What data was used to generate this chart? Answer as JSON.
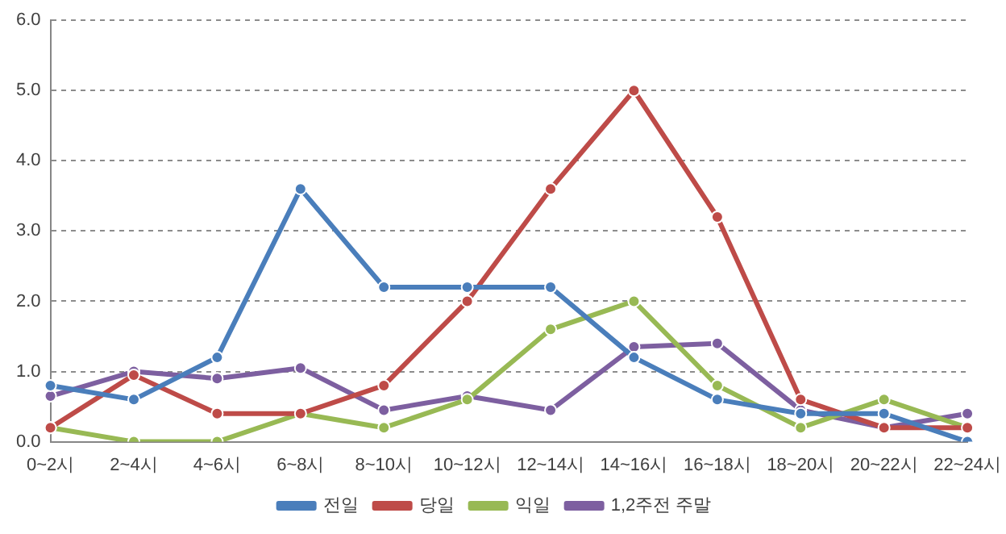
{
  "chart_data": {
    "type": "line",
    "categories": [
      "0~2시",
      "2~4시",
      "4~6시",
      "6~8시",
      "8~10시",
      "10~12시",
      "12~14시",
      "14~16시",
      "16~18시",
      "18~20시",
      "20~22시",
      "22~24시"
    ],
    "series": [
      {
        "name": "전일",
        "color": "#4a7ebb",
        "values": [
          0.8,
          0.6,
          1.2,
          3.6,
          2.2,
          2.2,
          2.2,
          1.2,
          0.6,
          0.4,
          0.4,
          0.0
        ]
      },
      {
        "name": "당일",
        "color": "#be4b48",
        "values": [
          0.2,
          0.95,
          0.4,
          0.4,
          0.8,
          2.0,
          3.6,
          5.0,
          3.2,
          0.6,
          0.2,
          0.2
        ]
      },
      {
        "name": "익일",
        "color": "#98b954",
        "values": [
          0.2,
          0.0,
          0.0,
          0.4,
          0.2,
          0.6,
          1.6,
          2.0,
          0.8,
          0.2,
          0.6,
          0.2
        ]
      },
      {
        "name": "1,2주전 주말",
        "color": "#7d5fa0",
        "values": [
          0.65,
          1.0,
          0.9,
          1.05,
          0.45,
          0.65,
          0.45,
          1.35,
          1.4,
          0.45,
          0.2,
          0.4
        ]
      }
    ],
    "ylim": [
      0,
      6
    ],
    "yticks": [
      {
        "value": 0,
        "label": "0.0"
      },
      {
        "value": 1,
        "label": "1.0"
      },
      {
        "value": 2,
        "label": "2.0"
      },
      {
        "value": 3,
        "label": "3.0"
      },
      {
        "value": 4,
        "label": "4.0"
      },
      {
        "value": 5,
        "label": "5.0"
      },
      {
        "value": 6,
        "label": "6.0"
      }
    ],
    "grid": "y",
    "legend": "bottom",
    "marker": "circle",
    "line_style": "solid"
  }
}
